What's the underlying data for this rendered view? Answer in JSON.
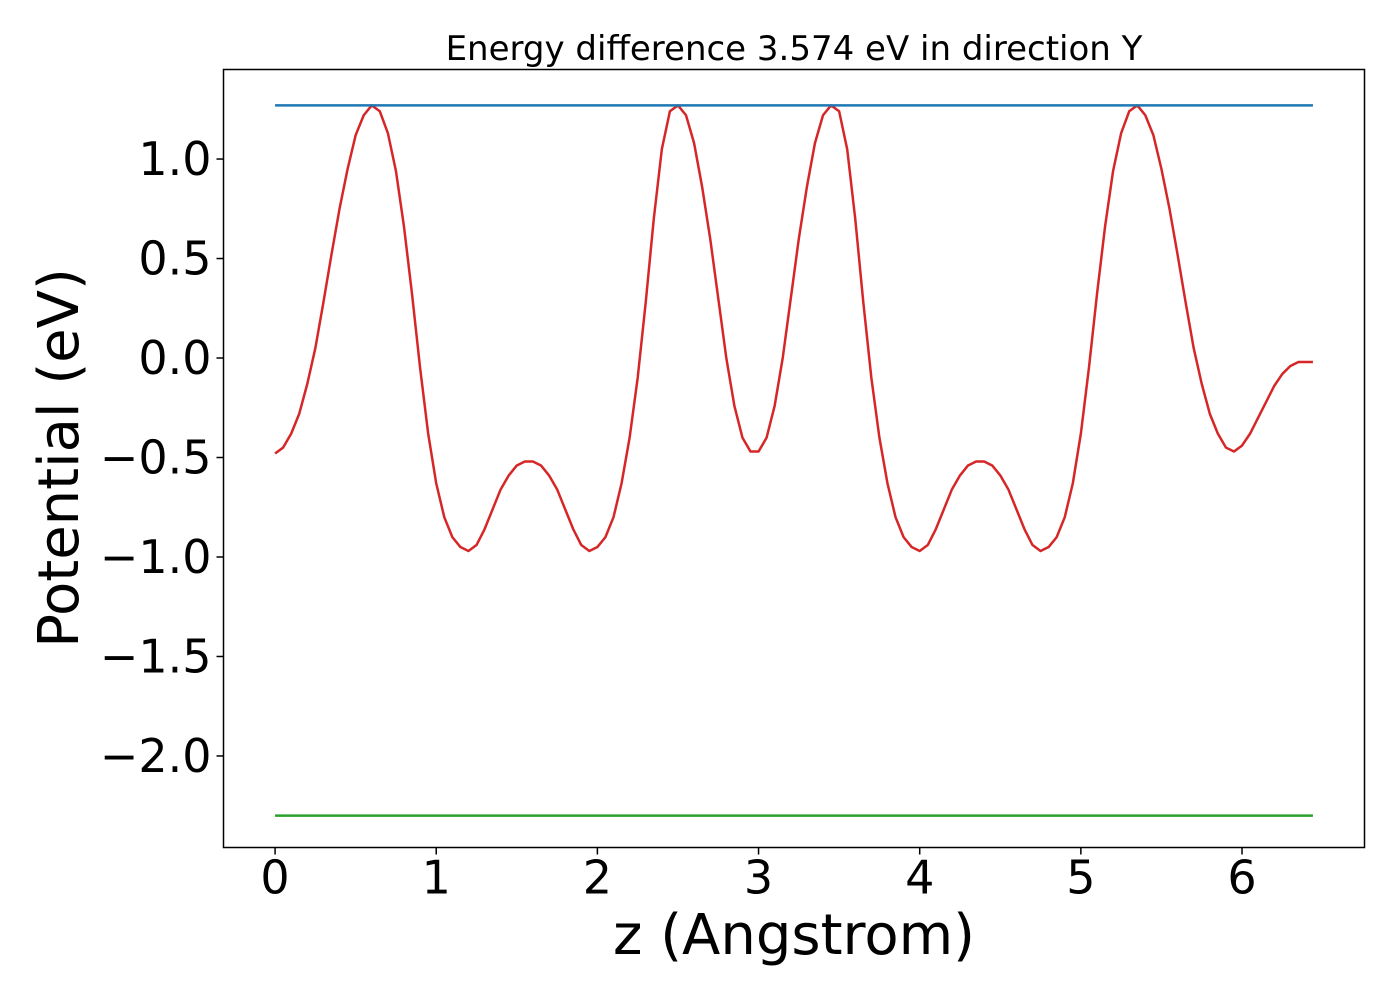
{
  "chart_data": {
    "type": "line",
    "title": "Energy difference 3.574 eV in direction Y",
    "xlabel": "z (Angstrom)",
    "ylabel": "Potential (eV)",
    "xlim": [
      -0.32,
      6.76
    ],
    "ylim": [
      -2.46,
      1.45
    ],
    "x_ticks": [
      0,
      1,
      2,
      3,
      4,
      5,
      6
    ],
    "x_tick_labels": [
      "0",
      "1",
      "2",
      "3",
      "4",
      "5",
      "6"
    ],
    "y_ticks": [
      1.0,
      0.5,
      0.0,
      -0.5,
      -1.0,
      -1.5,
      -2.0
    ],
    "y_tick_labels": [
      "1.0",
      "0.5",
      "0.0",
      "−0.5",
      "−1.0",
      "−1.5",
      "−2.0"
    ],
    "grid": false,
    "series": [
      {
        "color": "#d62728",
        "x": [
          0.0,
          0.05,
          0.1,
          0.15,
          0.2,
          0.25,
          0.3,
          0.35,
          0.4,
          0.45,
          0.5,
          0.55,
          0.6,
          0.65,
          0.7,
          0.75,
          0.8,
          0.85,
          0.9,
          0.95,
          1.0,
          1.05,
          1.1,
          1.15,
          1.2,
          1.25,
          1.3,
          1.35,
          1.4,
          1.45,
          1.5,
          1.55,
          1.6,
          1.65,
          1.7,
          1.75,
          1.8,
          1.85,
          1.9,
          1.95,
          2.0,
          2.05,
          2.1,
          2.15,
          2.2,
          2.25,
          2.3,
          2.35,
          2.4,
          2.45,
          2.5,
          2.55,
          2.6,
          2.65,
          2.7,
          2.75,
          2.8,
          2.85,
          2.9,
          2.95,
          3.0,
          3.05,
          3.1,
          3.15,
          3.2,
          3.25,
          3.3,
          3.35,
          3.4,
          3.45,
          3.5,
          3.55,
          3.6,
          3.65,
          3.7,
          3.75,
          3.8,
          3.85,
          3.9,
          3.95,
          4.0,
          4.05,
          4.1,
          4.15,
          4.2,
          4.25,
          4.3,
          4.35,
          4.4,
          4.45,
          4.5,
          4.55,
          4.6,
          4.65,
          4.7,
          4.75,
          4.8,
          4.85,
          4.9,
          4.95,
          5.0,
          5.05,
          5.1,
          5.15,
          5.2,
          5.25,
          5.3,
          5.35,
          5.4,
          5.45,
          5.5,
          5.55,
          5.6,
          5.65,
          5.7,
          5.75,
          5.8,
          5.85,
          5.9,
          5.95,
          6.0,
          6.05,
          6.1,
          6.15,
          6.2,
          6.25,
          6.3,
          6.35,
          6.4,
          6.44
        ],
        "values": [
          -0.48,
          -0.45,
          -0.38,
          -0.28,
          -0.13,
          0.05,
          0.28,
          0.52,
          0.75,
          0.95,
          1.12,
          1.22,
          1.27,
          1.24,
          1.13,
          0.94,
          0.66,
          0.32,
          -0.05,
          -0.38,
          -0.63,
          -0.8,
          -0.9,
          -0.95,
          -0.97,
          -0.94,
          -0.86,
          -0.76,
          -0.66,
          -0.59,
          -0.54,
          -0.52,
          -0.52,
          -0.54,
          -0.59,
          -0.66,
          -0.76,
          -0.86,
          -0.94,
          -0.97,
          -0.95,
          -0.9,
          -0.8,
          -0.63,
          -0.4,
          -0.1,
          0.28,
          0.7,
          1.05,
          1.24,
          1.27,
          1.22,
          1.08,
          0.86,
          0.6,
          0.3,
          0.0,
          -0.24,
          -0.4,
          -0.47,
          -0.47,
          -0.4,
          -0.24,
          0.0,
          0.3,
          0.6,
          0.86,
          1.08,
          1.22,
          1.27,
          1.24,
          1.05,
          0.7,
          0.28,
          -0.1,
          -0.4,
          -0.63,
          -0.8,
          -0.9,
          -0.95,
          -0.97,
          -0.94,
          -0.86,
          -0.76,
          -0.66,
          -0.59,
          -0.54,
          -0.52,
          -0.52,
          -0.54,
          -0.59,
          -0.66,
          -0.76,
          -0.86,
          -0.94,
          -0.97,
          -0.95,
          -0.9,
          -0.8,
          -0.63,
          -0.38,
          -0.05,
          0.32,
          0.66,
          0.94,
          1.13,
          1.24,
          1.27,
          1.22,
          1.12,
          0.95,
          0.75,
          0.52,
          0.28,
          0.05,
          -0.13,
          -0.28,
          -0.38,
          -0.45,
          -0.47,
          -0.44,
          -0.38,
          -0.3,
          -0.22,
          -0.14,
          -0.08,
          -0.04,
          -0.02,
          -0.02,
          -0.02
        ]
      },
      {
        "color": "#1f77b4",
        "x": [
          0.0,
          6.44
        ],
        "values": [
          1.27,
          1.27
        ]
      },
      {
        "color": "#2ca02c",
        "x": [
          0.0,
          6.44
        ],
        "values": [
          -2.3,
          -2.3
        ]
      }
    ]
  }
}
